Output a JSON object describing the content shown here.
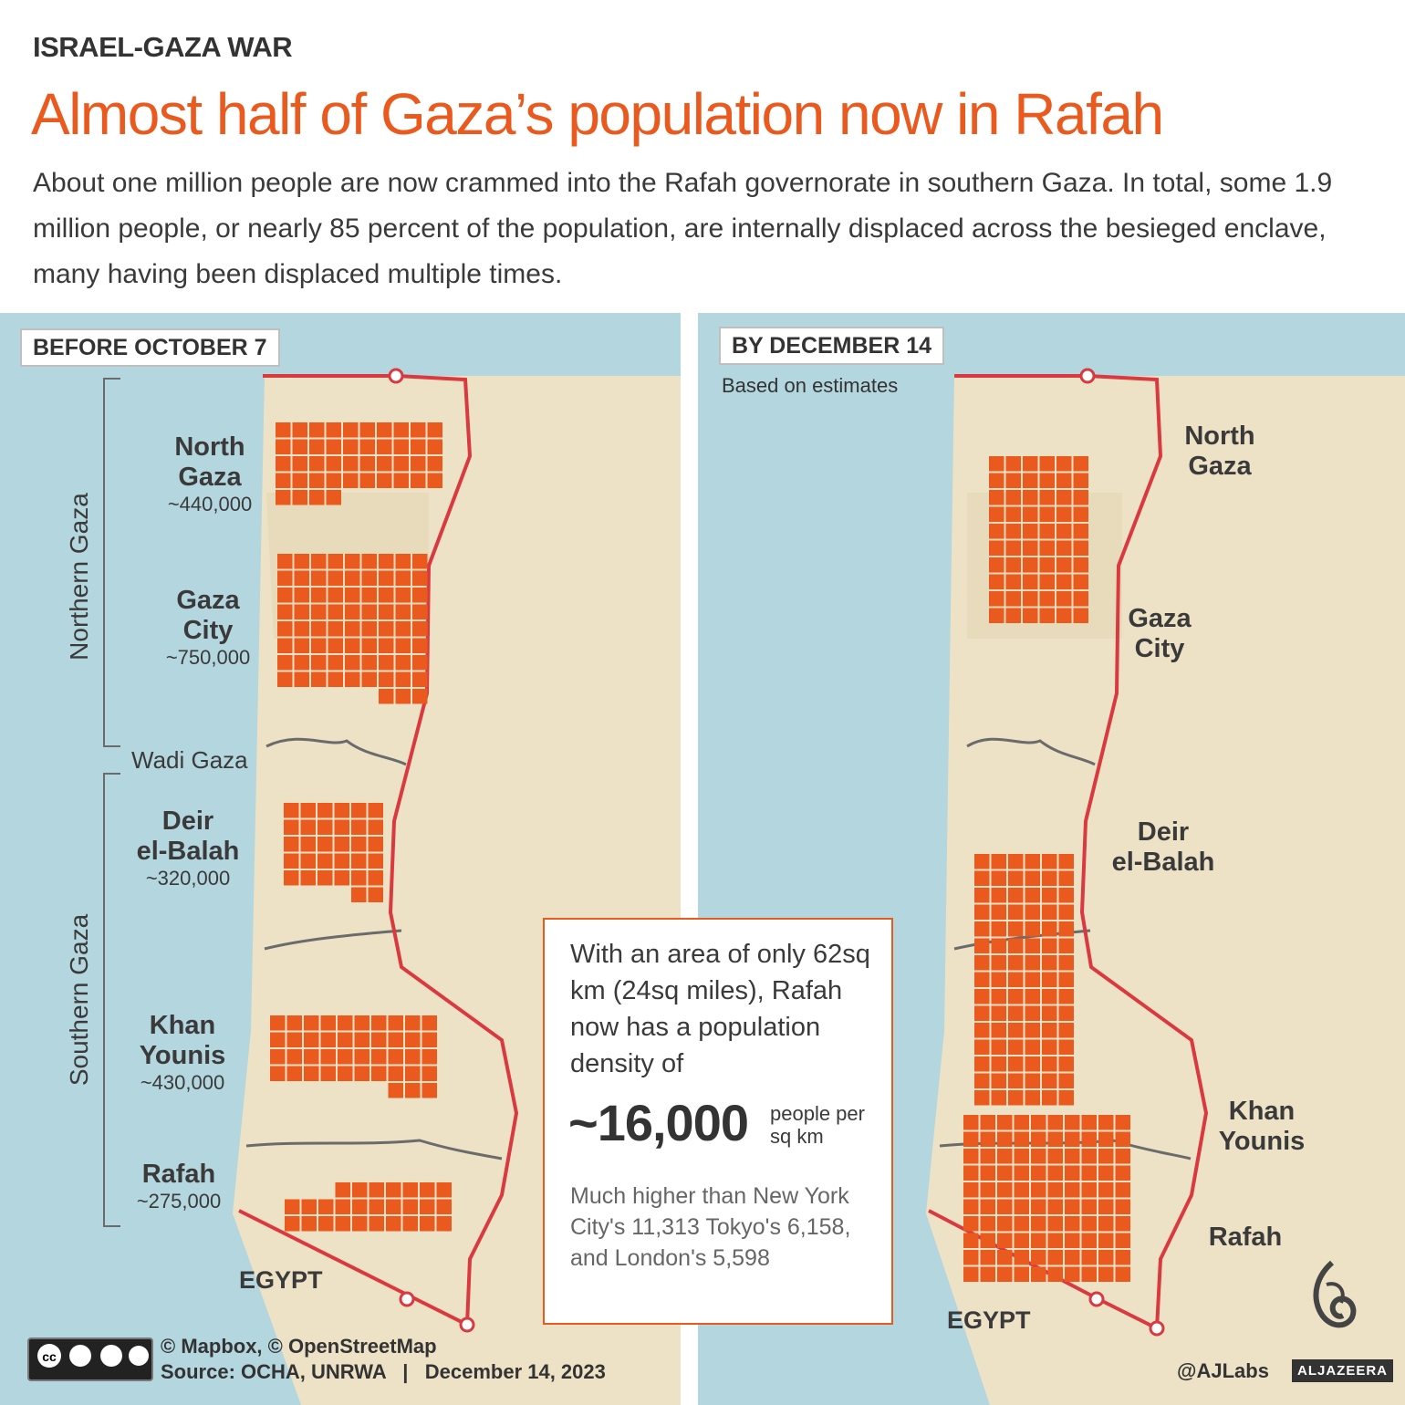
{
  "header": {
    "kicker": "ISRAEL-GAZA WAR",
    "headline": "Almost half of Gaza’s population now in Rafah",
    "intro": "About one million people are now crammed into the Rafah governorate in southern Gaza. In total, some 1.9 million people, or nearly 85 percent of the population, are internally displaced across the besieged enclave, many having been displaced multiple times."
  },
  "colors": {
    "accent": "#ea5a1f",
    "sea": "#b4d6df",
    "land": "#ede2c6",
    "border": "#d9393f"
  },
  "left_panel": {
    "label": "BEFORE OCTOBER 7",
    "region_north": "Northern Gaza",
    "region_south": "Southern Gaza",
    "wadi": "Wadi Gaza",
    "egypt": "EGYPT",
    "areas": [
      {
        "name": "North Gaza",
        "line1": "North",
        "line2": "Gaza",
        "population": "~440,000",
        "squares": 44
      },
      {
        "name": "Gaza City",
        "line1": "Gaza",
        "line2": "City",
        "population": "~750,000",
        "squares": 75
      },
      {
        "name": "Deir el-Balah",
        "line1": "Deir",
        "line2": "el-Balah",
        "population": "~320,000",
        "squares": 32
      },
      {
        "name": "Khan Younis",
        "line1": "Khan",
        "line2": "Younis",
        "population": "~430,000",
        "squares": 43
      },
      {
        "name": "Rafah",
        "line1": "Rafah",
        "line2": "",
        "population": "~275,000",
        "squares": 27
      }
    ]
  },
  "right_panel": {
    "label": "BY DECEMBER 14",
    "note": "Based on estimates",
    "egypt": "EGYPT",
    "areas": [
      {
        "line1": "North",
        "line2": "Gaza",
        "squares": 0
      },
      {
        "line1": "Gaza",
        "line2": "City",
        "squares": 60
      },
      {
        "line1": "Deir",
        "line2": "el-Balah",
        "squares": 90
      },
      {
        "line1": "Khan",
        "line2": "Younis",
        "squares": 0
      },
      {
        "line1": "Rafah",
        "line2": "",
        "squares": 100
      }
    ]
  },
  "callout": {
    "text": "With an area of only 62sq km (24sq miles), Rafah now has a population density of",
    "big": "~16,000",
    "unit": "people per sq km",
    "compare": "Much higher than New York City's 11,313 Tokyo's 6,158, and London's 5,598"
  },
  "footer": {
    "credits": "© Mapbox, © OpenStreetMap",
    "source": "Source: OCHA, UNRWA   |   December 14, 2023",
    "handle": "@AJLabs",
    "brand": "ALJAZEERA"
  }
}
